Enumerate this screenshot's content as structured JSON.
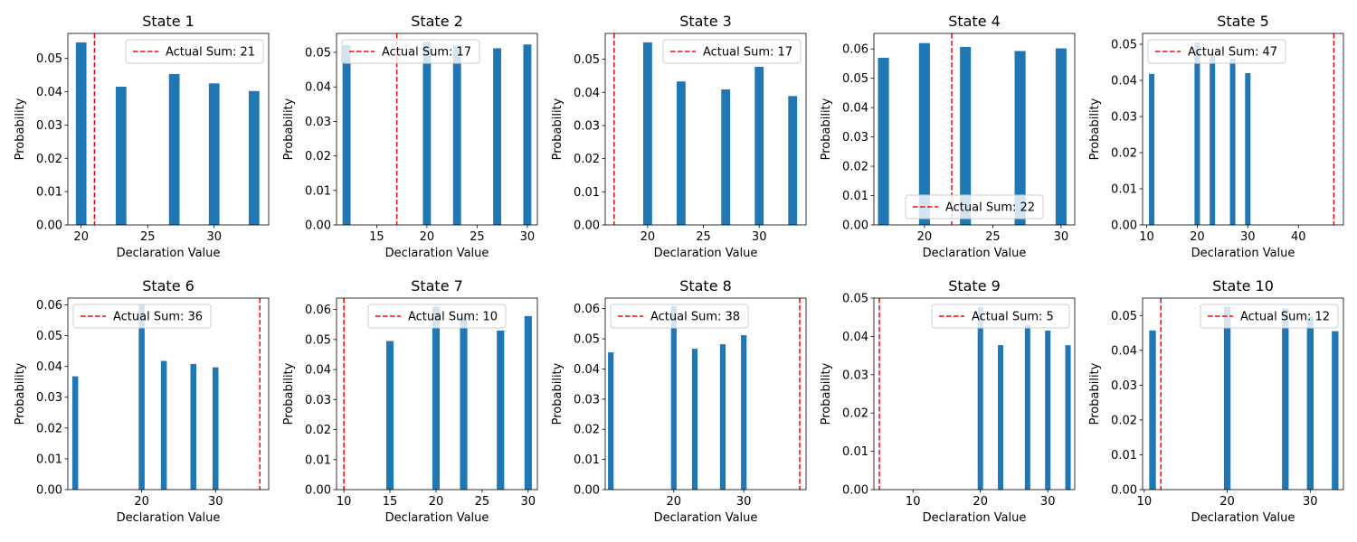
{
  "figure": {
    "bar_color": "#1f77b4",
    "line_color": "#ff0000"
  },
  "chart_data": [
    {
      "type": "bar",
      "title": "State 1",
      "xlabel": "Declaration Value",
      "ylabel": "Probability",
      "x": [
        20,
        23,
        27,
        30,
        33
      ],
      "values": [
        0.0548,
        0.0415,
        0.0453,
        0.0425,
        0.0402
      ],
      "xlim": [
        19,
        34.1
      ],
      "ylim": [
        0,
        0.0575
      ],
      "xticks": [
        20,
        25,
        30
      ],
      "yticks": [
        0,
        0.01,
        0.02,
        0.03,
        0.04,
        0.05
      ],
      "actual_sum": 21,
      "legend_label": "Actual Sum: 21",
      "legend_loc": "upper right"
    },
    {
      "type": "bar",
      "title": "State 2",
      "xlabel": "Declaration Value",
      "ylabel": "Probability",
      "x": [
        12,
        20,
        23,
        27,
        30
      ],
      "values": [
        0.0521,
        0.053,
        0.052,
        0.0512,
        0.0523
      ],
      "xlim": [
        11,
        31
      ],
      "ylim": [
        0,
        0.0555
      ],
      "xticks": [
        15,
        20,
        25,
        30
      ],
      "yticks": [
        0,
        0.01,
        0.02,
        0.03,
        0.04,
        0.05
      ],
      "actual_sum": 17,
      "legend_label": "Actual Sum: 17",
      "legend_loc": "upper left"
    },
    {
      "type": "bar",
      "title": "State 3",
      "xlabel": "Declaration Value",
      "ylabel": "Probability",
      "x": [
        20,
        23,
        27,
        30,
        33
      ],
      "values": [
        0.0551,
        0.0433,
        0.0409,
        0.0477,
        0.0389
      ],
      "xlim": [
        16.2,
        34.2
      ],
      "ylim": [
        0,
        0.0578
      ],
      "xticks": [
        20,
        25,
        30
      ],
      "yticks": [
        0,
        0.01,
        0.02,
        0.03,
        0.04,
        0.05
      ],
      "actual_sum": 17,
      "legend_label": "Actual Sum: 17",
      "legend_loc": "upper right"
    },
    {
      "type": "bar",
      "title": "State 4",
      "xlabel": "Declaration Value",
      "ylabel": "Probability",
      "x": [
        17,
        20,
        23,
        27,
        30
      ],
      "values": [
        0.057,
        0.062,
        0.0607,
        0.0593,
        0.0602
      ],
      "xlim": [
        16.3,
        31
      ],
      "ylim": [
        0,
        0.0653
      ],
      "xticks": [
        20,
        25,
        30
      ],
      "yticks": [
        0,
        0.01,
        0.02,
        0.03,
        0.04,
        0.05,
        0.06
      ],
      "actual_sum": 22,
      "legend_label": "Actual Sum: 22",
      "legend_loc": "lower center"
    },
    {
      "type": "bar",
      "title": "State 5",
      "xlabel": "Declaration Value",
      "ylabel": "Probability",
      "x": [
        11,
        20,
        23,
        27,
        30
      ],
      "values": [
        0.0418,
        0.0505,
        0.047,
        0.046,
        0.042
      ],
      "xlim": [
        9.2,
        48.9
      ],
      "ylim": [
        0,
        0.053
      ],
      "xticks": [
        10,
        20,
        30,
        40
      ],
      "yticks": [
        0,
        0.01,
        0.02,
        0.03,
        0.04,
        0.05
      ],
      "actual_sum": 47,
      "legend_label": "Actual Sum: 47",
      "legend_loc": "upper left"
    },
    {
      "type": "bar",
      "title": "State 6",
      "xlabel": "Declaration Value",
      "ylabel": "Probability",
      "x": [
        11,
        20,
        23,
        27,
        30
      ],
      "values": [
        0.0368,
        0.06,
        0.0418,
        0.0408,
        0.0397
      ],
      "xlim": [
        10,
        37.2
      ],
      "ylim": [
        0,
        0.0622
      ],
      "xticks": [
        20,
        30
      ],
      "yticks": [
        0,
        0.01,
        0.02,
        0.03,
        0.04,
        0.05,
        0.06
      ],
      "actual_sum": 36,
      "legend_label": "Actual Sum: 36",
      "legend_loc": "upper left"
    },
    {
      "type": "bar",
      "title": "State 7",
      "xlabel": "Declaration Value",
      "ylabel": "Probability",
      "x": [
        15,
        20,
        23,
        27,
        30
      ],
      "values": [
        0.0495,
        0.061,
        0.0573,
        0.053,
        0.0578
      ],
      "xlim": [
        9.2,
        31
      ],
      "ylim": [
        0,
        0.0638
      ],
      "xticks": [
        10,
        15,
        20,
        25,
        30
      ],
      "yticks": [
        0,
        0.01,
        0.02,
        0.03,
        0.04,
        0.05,
        0.06
      ],
      "actual_sum": 10,
      "legend_label": "Actual Sum: 10",
      "legend_loc": "upper center"
    },
    {
      "type": "bar",
      "title": "State 8",
      "xlabel": "Declaration Value",
      "ylabel": "Probability",
      "x": [
        11,
        20,
        23,
        27,
        30
      ],
      "values": [
        0.0455,
        0.0608,
        0.0467,
        0.0482,
        0.0512
      ],
      "xlim": [
        10.2,
        38.9
      ],
      "ylim": [
        0,
        0.0635
      ],
      "xticks": [
        20,
        30
      ],
      "yticks": [
        0,
        0.01,
        0.02,
        0.03,
        0.04,
        0.05,
        0.06
      ],
      "actual_sum": 38,
      "legend_label": "Actual Sum: 38",
      "legend_loc": "upper left"
    },
    {
      "type": "bar",
      "title": "State 9",
      "xlabel": "Declaration Value",
      "ylabel": "Probability",
      "x": [
        20,
        23,
        27,
        30,
        33
      ],
      "values": [
        0.0477,
        0.0377,
        0.043,
        0.0415,
        0.0377
      ],
      "xlim": [
        4.2,
        34
      ],
      "ylim": [
        0,
        0.05
      ],
      "xticks": [
        10,
        20,
        30
      ],
      "yticks": [
        0,
        0.01,
        0.02,
        0.03,
        0.04,
        0.05
      ],
      "actual_sum": 5,
      "legend_label": "Actual Sum: 5",
      "legend_loc": "upper right"
    },
    {
      "type": "bar",
      "title": "State 10",
      "xlabel": "Declaration Value",
      "ylabel": "Probability",
      "x": [
        11,
        20,
        27,
        30,
        33
      ],
      "values": [
        0.0457,
        0.0525,
        0.052,
        0.0497,
        0.0455
      ],
      "xlim": [
        9.8,
        34
      ],
      "ylim": [
        0,
        0.055
      ],
      "xticks": [
        10,
        20,
        30
      ],
      "yticks": [
        0,
        0.01,
        0.02,
        0.03,
        0.04,
        0.05
      ],
      "actual_sum": 12,
      "legend_label": "Actual Sum: 12",
      "legend_loc": "upper right"
    }
  ]
}
